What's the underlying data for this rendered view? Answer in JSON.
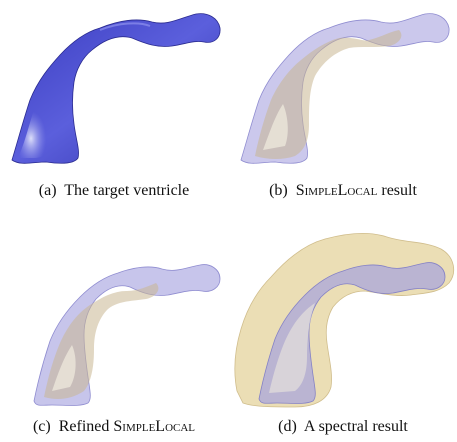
{
  "figure": {
    "panels": [
      {
        "label": "(a)",
        "text_before": "The target ventricle",
        "smallcaps": "",
        "text_after": ""
      },
      {
        "label": "(b)",
        "text_before": "",
        "smallcaps": "SimpleLocal",
        "text_after": " result"
      },
      {
        "label": "(c)",
        "text_before": "Refined ",
        "smallcaps": "SimpleLocal",
        "text_after": ""
      },
      {
        "label": "(d)",
        "text_before": "A spectral result",
        "smallcaps": "",
        "text_after": ""
      }
    ]
  },
  "colors": {
    "target_blue": "#4c4fd0",
    "target_highlight": "#c9cdf6",
    "overlay_lavender": "#b9b6e6",
    "overlay_tan": "#c9b691",
    "spectral_yellow": "#e8d8a8"
  }
}
